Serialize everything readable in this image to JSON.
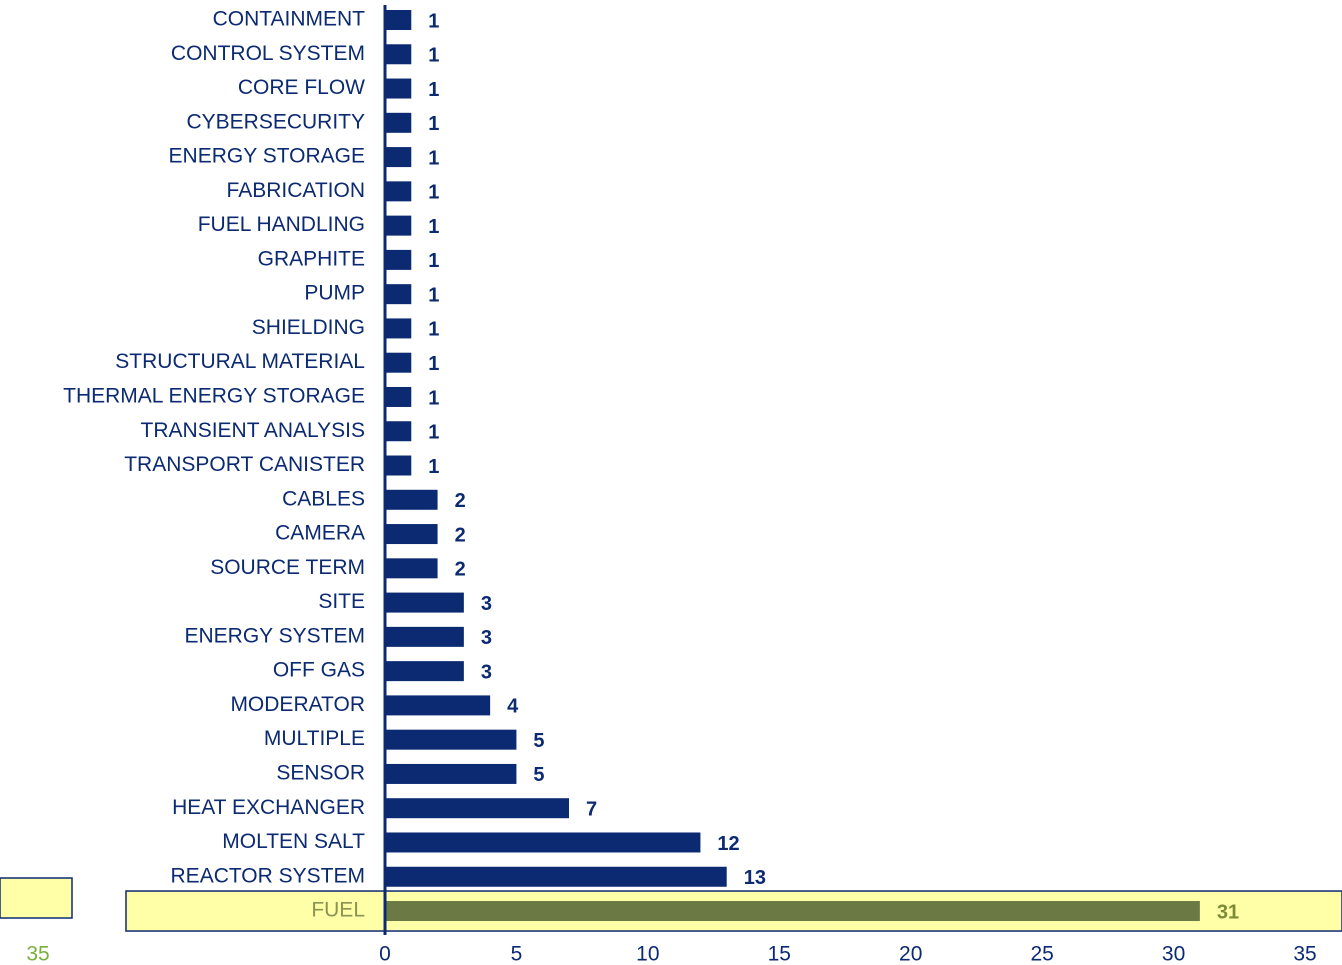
{
  "chart_data": {
    "type": "bar",
    "orientation": "horizontal",
    "categories": [
      "CONTAINMENT",
      "CONTROL SYSTEM",
      "CORE FLOW",
      "CYBERSECURITY",
      "ENERGY STORAGE",
      "FABRICATION",
      "FUEL HANDLING",
      "GRAPHITE",
      "PUMP",
      "SHIELDING",
      "STRUCTURAL MATERIAL",
      "THERMAL ENERGY STORAGE",
      "TRANSIENT ANALYSIS",
      "TRANSPORT CANISTER",
      "CABLES",
      "CAMERA",
      "SOURCE TERM",
      "SITE",
      "ENERGY SYSTEM",
      "OFF GAS",
      "MODERATOR",
      "MULTIPLE",
      "SENSOR",
      "HEAT EXCHANGER",
      "MOLTEN SALT",
      "REACTOR SYSTEM",
      "FUEL"
    ],
    "values": [
      1,
      1,
      1,
      1,
      1,
      1,
      1,
      1,
      1,
      1,
      1,
      1,
      1,
      1,
      2,
      2,
      2,
      3,
      3,
      3,
      4,
      5,
      5,
      7,
      12,
      13,
      31
    ],
    "color": "#0c2a72",
    "highlight_index": 26,
    "highlight_color": "#6b7a45",
    "highlight_band_color": "#ffffa8",
    "xlim": [
      0,
      35
    ],
    "xticks": [
      0,
      5,
      10,
      15,
      20,
      25,
      30,
      35
    ],
    "grid": false,
    "annotations": [
      "35"
    ]
  }
}
